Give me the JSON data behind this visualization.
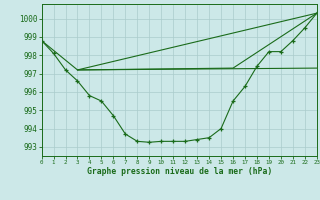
{
  "line1_x": [
    0,
    1,
    2,
    3,
    4,
    5,
    6,
    7,
    8,
    9,
    10,
    11,
    12,
    13,
    14,
    15,
    16,
    17,
    18,
    19,
    20,
    21,
    22,
    23
  ],
  "line1_y": [
    998.8,
    998.1,
    997.2,
    996.6,
    995.8,
    995.5,
    994.7,
    993.7,
    993.3,
    993.25,
    993.3,
    993.3,
    993.3,
    993.4,
    993.5,
    994.0,
    995.5,
    996.3,
    997.4,
    998.2,
    998.2,
    998.8,
    999.5,
    1000.3
  ],
  "line2_x": [
    0,
    3,
    23
  ],
  "line2_y": [
    998.8,
    997.2,
    1000.3
  ],
  "line3_x": [
    3,
    16,
    23
  ],
  "line3_y": [
    997.2,
    997.3,
    1000.3
  ],
  "line4_x": [
    3,
    23
  ],
  "line4_y": [
    997.2,
    997.3
  ],
  "color": "#1a6b1a",
  "bg_color": "#cce8e8",
  "grid_color": "#aacccc",
  "xlabel": "Graphe pression niveau de la mer (hPa)",
  "xlim": [
    0,
    23
  ],
  "ylim": [
    992.5,
    1000.8
  ],
  "yticks": [
    993,
    994,
    995,
    996,
    997,
    998,
    999,
    1000
  ],
  "xticks": [
    0,
    1,
    2,
    3,
    4,
    5,
    6,
    7,
    8,
    9,
    10,
    11,
    12,
    13,
    14,
    15,
    16,
    17,
    18,
    19,
    20,
    21,
    22,
    23
  ]
}
